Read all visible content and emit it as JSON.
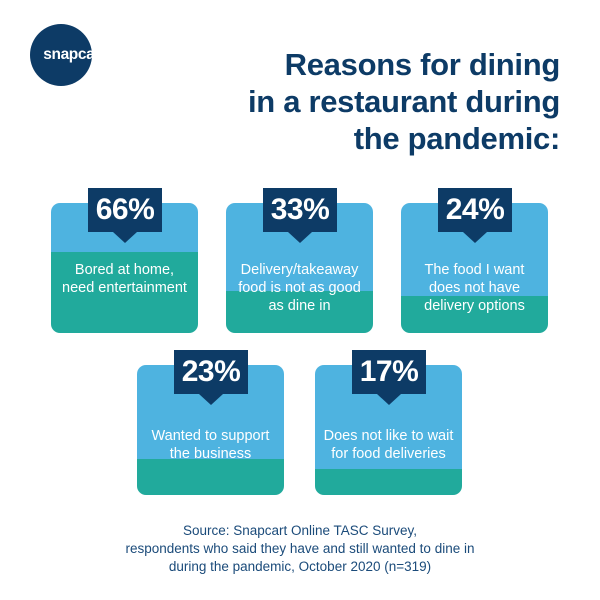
{
  "brand": {
    "logo_text": "snapcart"
  },
  "title_lines": [
    "Reasons for dining",
    "in a restaurant during",
    "the pandemic:"
  ],
  "colors": {
    "navy": "#0d3b66",
    "light_blue": "#4eb3e0",
    "teal": "#21aa9c",
    "white": "#ffffff"
  },
  "chart_data": {
    "type": "table",
    "title": "Reasons for dining in a restaurant during the pandemic:",
    "items": [
      {
        "value": "66%",
        "label": "Bored at home, need entertainment"
      },
      {
        "value": "33%",
        "label": "Delivery/takeaway food is not as good as dine in"
      },
      {
        "value": "24%",
        "label": "The food I want does not have delivery options"
      },
      {
        "value": "23%",
        "label": "Wanted to support the business"
      },
      {
        "value": "17%",
        "label": "Does not like to wait for food deliveries"
      }
    ],
    "values": [
      66,
      33,
      24,
      23,
      17
    ]
  },
  "source_lines": [
    "Source: Snapcart Online TASC Survey,",
    "respondents who said they have and still wanted to dine in",
    "during the pandemic, October 2020 (n=319)"
  ]
}
